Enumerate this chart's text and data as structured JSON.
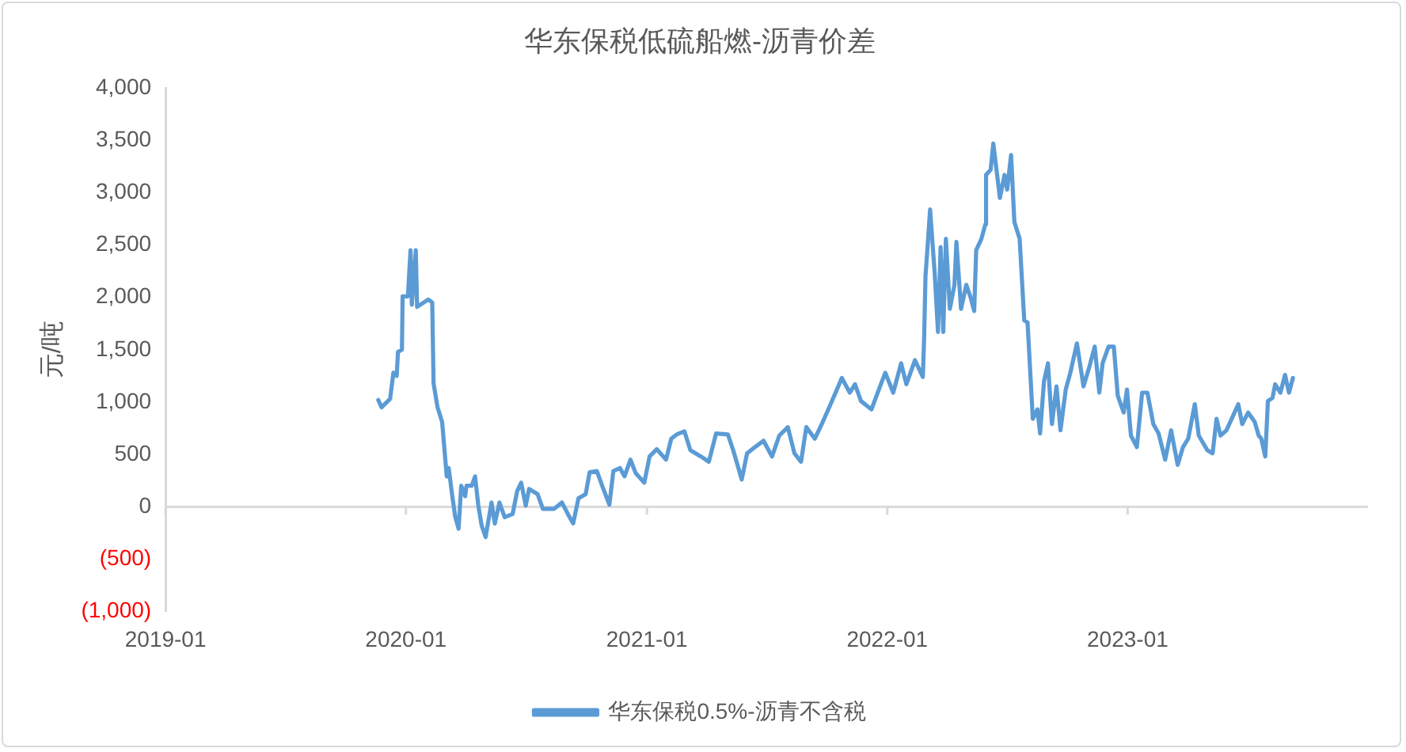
{
  "chart_data": {
    "type": "line",
    "title": "华东保税低硫船燃-沥青价差",
    "ylabel": "元/吨",
    "xlim": [
      "2019-01",
      "2024-01"
    ],
    "xticks": [
      "2019-01",
      "2020-01",
      "2021-01",
      "2022-01",
      "2023-01"
    ],
    "ylim": [
      -1000,
      4000
    ],
    "yticks": [
      {
        "value": -1000,
        "label": "(1,000)"
      },
      {
        "value": -500,
        "label": "(500)"
      },
      {
        "value": 0,
        "label": "0"
      },
      {
        "value": 500,
        "label": "500"
      },
      {
        "value": 1000,
        "label": "1,000"
      },
      {
        "value": 1500,
        "label": "1,500"
      },
      {
        "value": 2000,
        "label": "2,000"
      },
      {
        "value": 2500,
        "label": "2,500"
      },
      {
        "value": 3000,
        "label": "3,000"
      },
      {
        "value": 3500,
        "label": "3,500"
      },
      {
        "value": 4000,
        "label": "4,000"
      }
    ],
    "legend": "bottom",
    "marker": "none",
    "line_style": "solid",
    "x": [
      "2019-11-20",
      "2019-11-25",
      "2019-12-08",
      "2019-12-13",
      "2019-12-18",
      "2019-12-20",
      "2019-12-26",
      "2019-12-27",
      "2020-01-04",
      "2020-01-08",
      "2020-01-10",
      "2020-01-16",
      "2020-01-18",
      "2020-02-04",
      "2020-02-10",
      "2020-02-12",
      "2020-02-18",
      "2020-02-25",
      "2020-03-03",
      "2020-03-06",
      "2020-03-11",
      "2020-03-16",
      "2020-03-21",
      "2020-03-25",
      "2020-03-31",
      "2020-04-02",
      "2020-04-10",
      "2020-04-15",
      "2020-04-20",
      "2020-04-25",
      "2020-05-01",
      "2020-05-10",
      "2020-05-15",
      "2020-05-22",
      "2020-05-30",
      "2020-06-11",
      "2020-06-18",
      "2020-06-24",
      "2020-07-01",
      "2020-07-06",
      "2020-07-19",
      "2020-07-27",
      "2020-08-13",
      "2020-08-25",
      "2020-09-03",
      "2020-09-11",
      "2020-09-19",
      "2020-09-30",
      "2020-10-06",
      "2020-10-17",
      "2020-10-28",
      "2020-11-05",
      "2020-11-11",
      "2020-11-21",
      "2020-11-28",
      "2020-12-07",
      "2020-12-15",
      "2020-12-28",
      "2021-01-05",
      "2021-01-16",
      "2021-01-30",
      "2021-02-07",
      "2021-02-15",
      "2021-02-27",
      "2021-03-08",
      "2021-03-24",
      "2021-04-05",
      "2021-04-16",
      "2021-05-04",
      "2021-05-12",
      "2021-05-25",
      "2021-06-02",
      "2021-06-14",
      "2021-06-27",
      "2021-07-10",
      "2021-07-21",
      "2021-08-03",
      "2021-08-13",
      "2021-08-23",
      "2021-08-31",
      "2021-09-13",
      "2021-09-25",
      "2021-10-07",
      "2021-10-24",
      "2021-11-05",
      "2021-11-13",
      "2021-11-22",
      "2021-12-08",
      "2021-12-21",
      "2021-12-29",
      "2022-01-10",
      "2022-01-22",
      "2022-01-30",
      "2022-02-12",
      "2022-02-24",
      "2022-02-26",
      "2022-02-28",
      "2022-03-04",
      "2022-03-07",
      "2022-03-14",
      "2022-03-19",
      "2022-03-23",
      "2022-03-27",
      "2022-03-31",
      "2022-04-06",
      "2022-04-13",
      "2022-04-16",
      "2022-04-23",
      "2022-05-01",
      "2022-05-07",
      "2022-05-13",
      "2022-05-16",
      "2022-05-24",
      "2022-05-30",
      "2022-05-31",
      "2022-06-07",
      "2022-06-11",
      "2022-06-21",
      "2022-06-28",
      "2022-07-02",
      "2022-07-08",
      "2022-07-13",
      "2022-07-21",
      "2022-07-28",
      "2022-08-02",
      "2022-08-10",
      "2022-08-17",
      "2022-08-21",
      "2022-08-27",
      "2022-09-02",
      "2022-09-08",
      "2022-09-15",
      "2022-09-21",
      "2022-09-29",
      "2022-10-06",
      "2022-10-16",
      "2022-10-26",
      "2022-11-04",
      "2022-11-12",
      "2022-11-19",
      "2022-11-24",
      "2022-12-03",
      "2022-12-11",
      "2022-12-17",
      "2022-12-26",
      "2022-12-31",
      "2023-01-06",
      "2023-01-15",
      "2023-01-23",
      "2023-01-31",
      "2023-02-09",
      "2023-02-17",
      "2023-02-27",
      "2023-03-08",
      "2023-03-18",
      "2023-03-26",
      "2023-04-03",
      "2023-04-13",
      "2023-04-19",
      "2023-05-02",
      "2023-05-10",
      "2023-05-16",
      "2023-05-22",
      "2023-05-31",
      "2023-06-08",
      "2023-06-18",
      "2023-06-24",
      "2023-07-03",
      "2023-07-13",
      "2023-07-19",
      "2023-07-23",
      "2023-07-29",
      "2023-08-02",
      "2023-08-09",
      "2023-08-13",
      "2023-08-21",
      "2023-08-28",
      "2023-09-03",
      "2023-09-09"
    ],
    "series": [
      {
        "name": "华东保税0.5%-沥青不含税",
        "color": "#5b9bd5",
        "values": [
          1020,
          950,
          1030,
          1280,
          1250,
          1480,
          1500,
          2010,
          2010,
          2450,
          1930,
          2450,
          1910,
          1980,
          1950,
          1180,
          950,
          810,
          290,
          370,
          120,
          -100,
          -210,
          200,
          100,
          200,
          200,
          290,
          10,
          -180,
          -290,
          40,
          -160,
          40,
          -100,
          -70,
          150,
          230,
          10,
          170,
          120,
          -20,
          -20,
          40,
          -70,
          -160,
          80,
          120,
          330,
          340,
          150,
          20,
          340,
          370,
          290,
          450,
          320,
          230,
          480,
          550,
          450,
          650,
          690,
          720,
          540,
          480,
          430,
          700,
          690,
          540,
          260,
          510,
          570,
          630,
          480,
          680,
          760,
          510,
          430,
          760,
          650,
          810,
          980,
          1230,
          1090,
          1170,
          1010,
          930,
          1150,
          1280,
          1090,
          1370,
          1170,
          1400,
          1240,
          1620,
          2200,
          2560,
          2840,
          2230,
          1670,
          2480,
          1670,
          2560,
          1890,
          2120,
          2530,
          1890,
          2120,
          2010,
          1870,
          2450,
          2560,
          2700,
          3170,
          3220,
          3470,
          2950,
          3170,
          3030,
          3360,
          2720,
          2560,
          1780,
          1760,
          840,
          930,
          700,
          1200,
          1370,
          790,
          1150,
          730,
          1120,
          1280,
          1560,
          1150,
          1340,
          1530,
          1090,
          1370,
          1530,
          1530,
          1060,
          900,
          1120,
          680,
          570,
          1090,
          1090,
          790,
          700,
          450,
          730,
          400,
          570,
          650,
          980,
          680,
          540,
          510,
          840,
          680,
          730,
          840,
          980,
          790,
          900,
          810,
          680,
          650,
          480,
          1010,
          1040,
          1170,
          1090,
          1260,
          1090,
          1230
        ]
      }
    ]
  }
}
